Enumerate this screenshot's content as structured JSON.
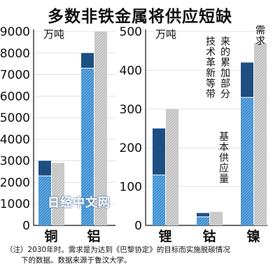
{
  "header": {
    "title": "多数非铁金属将供应短缺"
  },
  "chart_data": [
    {
      "type": "bar",
      "unit_label": "万吨",
      "ylim": [
        0,
        9000
      ],
      "yticks": [
        0,
        1000,
        2000,
        3000,
        4000,
        5000,
        6000,
        7000,
        8000,
        9000
      ],
      "categories": [
        "铜",
        "铝"
      ],
      "series": [
        {
          "name": "基本供应量",
          "values": [
            2300,
            7300
          ]
        },
        {
          "name": "技术革新等带来的累加部分",
          "values": [
            700,
            700
          ]
        },
        {
          "name": "需求",
          "values": [
            2900,
            9000
          ]
        }
      ]
    },
    {
      "type": "bar",
      "unit_label": "万吨",
      "ylim": [
        0,
        500
      ],
      "yticks": [
        0,
        100,
        200,
        300,
        400,
        500
      ],
      "categories": [
        "锂",
        "钴",
        "镍"
      ],
      "series": [
        {
          "name": "基本供应量",
          "values": [
            130,
            22,
            330
          ]
        },
        {
          "name": "技术革新等带来的累加部分",
          "values": [
            120,
            10,
            90
          ]
        },
        {
          "name": "需求",
          "values": [
            300,
            35,
            470
          ]
        }
      ],
      "annotations": {
        "demand": "需求",
        "addition": "技术革新等带来的累加部分",
        "base": "基本供应量"
      }
    }
  ],
  "footnote": {
    "line1": "（注）2030年时。需求是为达到《巴黎协定》的目标而实施脱碳情况",
    "line2": "下的数据。数据来源于鲁汶大学。"
  },
  "watermark": "日经中文网",
  "colors": {
    "base": "#3d8fd1",
    "addition": "#1d4f82",
    "demand": "#cdcdcd"
  }
}
